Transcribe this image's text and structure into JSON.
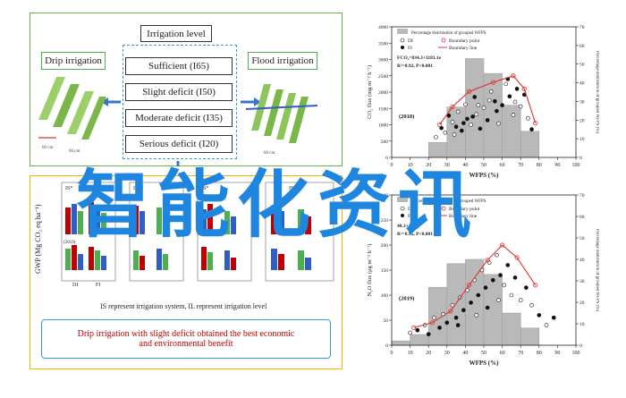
{
  "diagram": {
    "title": "Irrigation level",
    "drip_label": "Drip irrigation",
    "flood_label": "Flood irrigation",
    "levels": [
      "Sufficient (I65)",
      "Slight deficit (I50)",
      "Moderate deficit (I35)",
      "Serious deficit (I20)"
    ],
    "note": "IS represent irrigation system, IL represent irrigation level",
    "conclusion_line1": "Drip irrigation with slight deficit obtained the best economic",
    "conclusion_line2": "and environmental benefit",
    "gwp_ylabel": "GWP (Mg CO₂ eq ha⁻¹)",
    "mini_chart_labels": [
      "IS*",
      "IS**",
      "IS*",
      "IS*IL"
    ],
    "mini_chart_axis": [
      "DI",
      "FI"
    ],
    "mini_year": "(2019)",
    "dim_labels": [
      "60 cm",
      "60 cm",
      "60 cm"
    ]
  },
  "overlay_text": "智能化资讯",
  "chart_data": [
    {
      "type": "scatter",
      "year": "(2018)",
      "legend_title": "Percentage distribution of grouped WFPS",
      "series": [
        {
          "name": "DI",
          "marker": "open-circle"
        },
        {
          "name": "FI",
          "marker": "filled-circle"
        },
        {
          "name": "Boundary point"
        },
        {
          "name": "Boundary line"
        }
      ],
      "equation": "FCO₂=834.3+1181.1e",
      "r2_text": "R²=0.92, P<0.001",
      "xlabel": "WFPS (%)",
      "ylabel": "CO₂ flux (mg m⁻² h⁻¹)",
      "y2label": "Percentage distribution of grouped WFPS (%)",
      "xlim": [
        0,
        100
      ],
      "ylim": [
        0,
        4000
      ],
      "y2lim": [
        0,
        70
      ],
      "xticks": [
        0,
        10,
        20,
        30,
        40,
        50,
        60,
        70,
        80,
        90,
        100
      ],
      "yticks": [
        0,
        500,
        1000,
        1500,
        2000,
        2500,
        3000,
        3500,
        4000
      ],
      "y2ticks": [
        0,
        10,
        20,
        30,
        40,
        50,
        60,
        70
      ],
      "histogram": {
        "x": [
          25,
          35,
          45,
          55,
          65,
          75
        ],
        "values": [
          8,
          27,
          53,
          45,
          28,
          14
        ]
      },
      "boundary_points": [
        {
          "x": 26,
          "y": 1000
        },
        {
          "x": 33,
          "y": 1550
        },
        {
          "x": 42,
          "y": 2020
        },
        {
          "x": 55,
          "y": 2300
        },
        {
          "x": 66,
          "y": 2500
        },
        {
          "x": 72,
          "y": 2100
        },
        {
          "x": 78,
          "y": 1050
        }
      ],
      "points": [
        {
          "x": 24,
          "y": 620
        },
        {
          "x": 27,
          "y": 900
        },
        {
          "x": 29,
          "y": 760
        },
        {
          "x": 31,
          "y": 1280
        },
        {
          "x": 33,
          "y": 1080
        },
        {
          "x": 35,
          "y": 940
        },
        {
          "x": 36,
          "y": 1400
        },
        {
          "x": 38,
          "y": 820
        },
        {
          "x": 40,
          "y": 1620
        },
        {
          "x": 41,
          "y": 1180
        },
        {
          "x": 43,
          "y": 1000
        },
        {
          "x": 45,
          "y": 1850
        },
        {
          "x": 46,
          "y": 1320
        },
        {
          "x": 48,
          "y": 880
        },
        {
          "x": 50,
          "y": 1520
        },
        {
          "x": 52,
          "y": 1140
        },
        {
          "x": 54,
          "y": 2020
        },
        {
          "x": 56,
          "y": 1720
        },
        {
          "x": 58,
          "y": 1040
        },
        {
          "x": 60,
          "y": 1600
        },
        {
          "x": 62,
          "y": 2250
        },
        {
          "x": 64,
          "y": 1870
        },
        {
          "x": 66,
          "y": 1300
        },
        {
          "x": 68,
          "y": 2100
        },
        {
          "x": 70,
          "y": 1560
        },
        {
          "x": 72,
          "y": 1920
        },
        {
          "x": 74,
          "y": 1200
        },
        {
          "x": 76,
          "y": 860
        },
        {
          "x": 34,
          "y": 700
        },
        {
          "x": 44,
          "y": 1250
        },
        {
          "x": 53,
          "y": 1750
        },
        {
          "x": 63,
          "y": 2400
        },
        {
          "x": 67,
          "y": 1700
        },
        {
          "x": 57,
          "y": 1420
        },
        {
          "x": 47,
          "y": 1600
        },
        {
          "x": 39,
          "y": 1050
        }
      ]
    },
    {
      "type": "scatter",
      "year": "(2019)",
      "legend_title": "Percentage distribution of grouped WFPS",
      "series": [
        {
          "name": "DI",
          "marker": "open-circle"
        },
        {
          "name": "FI",
          "marker": "filled-circle"
        },
        {
          "name": "Boundary point"
        },
        {
          "name": "Boundary line"
        }
      ],
      "equation": "48.3+14.2e",
      "r2_text": "R²=0.95, P<0.001",
      "xlabel": "WFPS (%)",
      "ylabel": "N₂O flux (μg m⁻² h⁻¹)",
      "y2label": "Percentage distribution of grouped WFPS (%)",
      "xlim": [
        0,
        100
      ],
      "ylim": [
        0,
        300
      ],
      "y2lim": [
        0,
        70
      ],
      "xticks": [
        0,
        10,
        20,
        30,
        40,
        50,
        60,
        70,
        80,
        90,
        100
      ],
      "yticks": [
        0,
        50,
        100,
        150,
        200,
        250,
        300
      ],
      "y2ticks": [
        0,
        10,
        20,
        30,
        40,
        50,
        60,
        70
      ],
      "histogram": {
        "x": [
          5,
          15,
          25,
          35,
          45,
          55,
          65,
          75
        ],
        "values": [
          2,
          5,
          27,
          38,
          40,
          33,
          15,
          8
        ]
      },
      "boundary_points": [
        {
          "x": 12,
          "y": 35
        },
        {
          "x": 22,
          "y": 45
        },
        {
          "x": 32,
          "y": 68
        },
        {
          "x": 42,
          "y": 120
        },
        {
          "x": 52,
          "y": 170
        },
        {
          "x": 60,
          "y": 200
        },
        {
          "x": 68,
          "y": 175
        },
        {
          "x": 78,
          "y": 120
        }
      ],
      "points": [
        {
          "x": 10,
          "y": 25
        },
        {
          "x": 14,
          "y": 30
        },
        {
          "x": 18,
          "y": 40
        },
        {
          "x": 20,
          "y": 22
        },
        {
          "x": 23,
          "y": 55
        },
        {
          "x": 26,
          "y": 35
        },
        {
          "x": 28,
          "y": 62
        },
        {
          "x": 30,
          "y": 45
        },
        {
          "x": 33,
          "y": 80
        },
        {
          "x": 35,
          "y": 55
        },
        {
          "x": 37,
          "y": 95
        },
        {
          "x": 39,
          "y": 70
        },
        {
          "x": 41,
          "y": 110
        },
        {
          "x": 43,
          "y": 85
        },
        {
          "x": 45,
          "y": 130
        },
        {
          "x": 47,
          "y": 100
        },
        {
          "x": 49,
          "y": 150
        },
        {
          "x": 51,
          "y": 115
        },
        {
          "x": 53,
          "y": 165
        },
        {
          "x": 55,
          "y": 130
        },
        {
          "x": 57,
          "y": 180
        },
        {
          "x": 59,
          "y": 140
        },
        {
          "x": 61,
          "y": 120
        },
        {
          "x": 63,
          "y": 160
        },
        {
          "x": 65,
          "y": 100
        },
        {
          "x": 67,
          "y": 135
        },
        {
          "x": 70,
          "y": 90
        },
        {
          "x": 73,
          "y": 115
        },
        {
          "x": 76,
          "y": 80
        },
        {
          "x": 80,
          "y": 60
        },
        {
          "x": 84,
          "y": 40
        },
        {
          "x": 88,
          "y": 55
        },
        {
          "x": 46,
          "y": 60
        },
        {
          "x": 52,
          "y": 75
        },
        {
          "x": 58,
          "y": 90
        },
        {
          "x": 36,
          "y": 40
        }
      ]
    }
  ]
}
